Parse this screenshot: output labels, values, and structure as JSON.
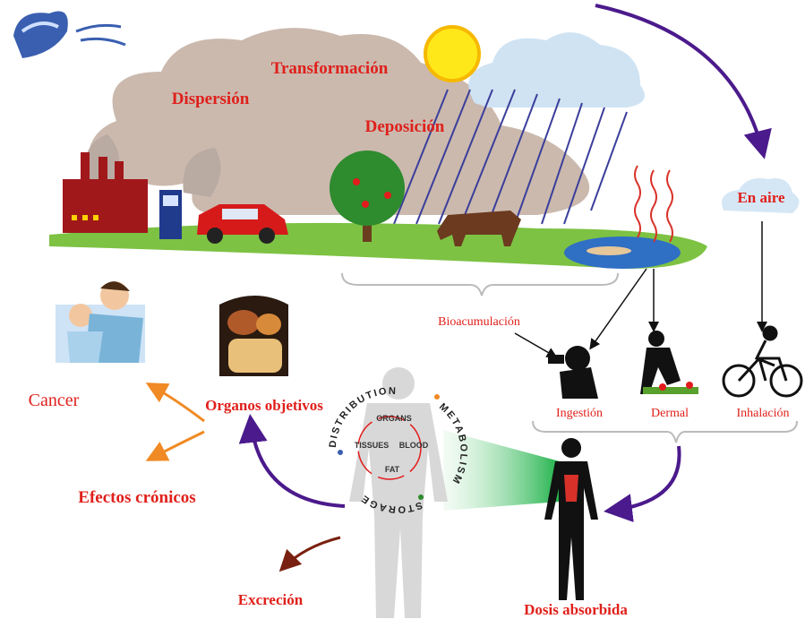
{
  "processes": {
    "transformation": "Transformación",
    "dispersion": "Dispersión",
    "deposition": "Deposición",
    "air": "En aire",
    "bioaccumulation": "Bioacumulación"
  },
  "routes": [
    "Ingestión",
    "Dermal",
    "Inhalación"
  ],
  "body_diagram": {
    "ring": [
      "DISTRIBUTION",
      "METABOLISM",
      "STORAGE"
    ],
    "inner": [
      "ORGANS",
      "TISSUES",
      "BLOOD",
      "FAT"
    ]
  },
  "effects": {
    "targets": "Organos objetivos",
    "cancer": "Cancer",
    "chronic": "Efectos crónicos",
    "excretion": "Excreción",
    "dose": "Dosis absorbida"
  }
}
